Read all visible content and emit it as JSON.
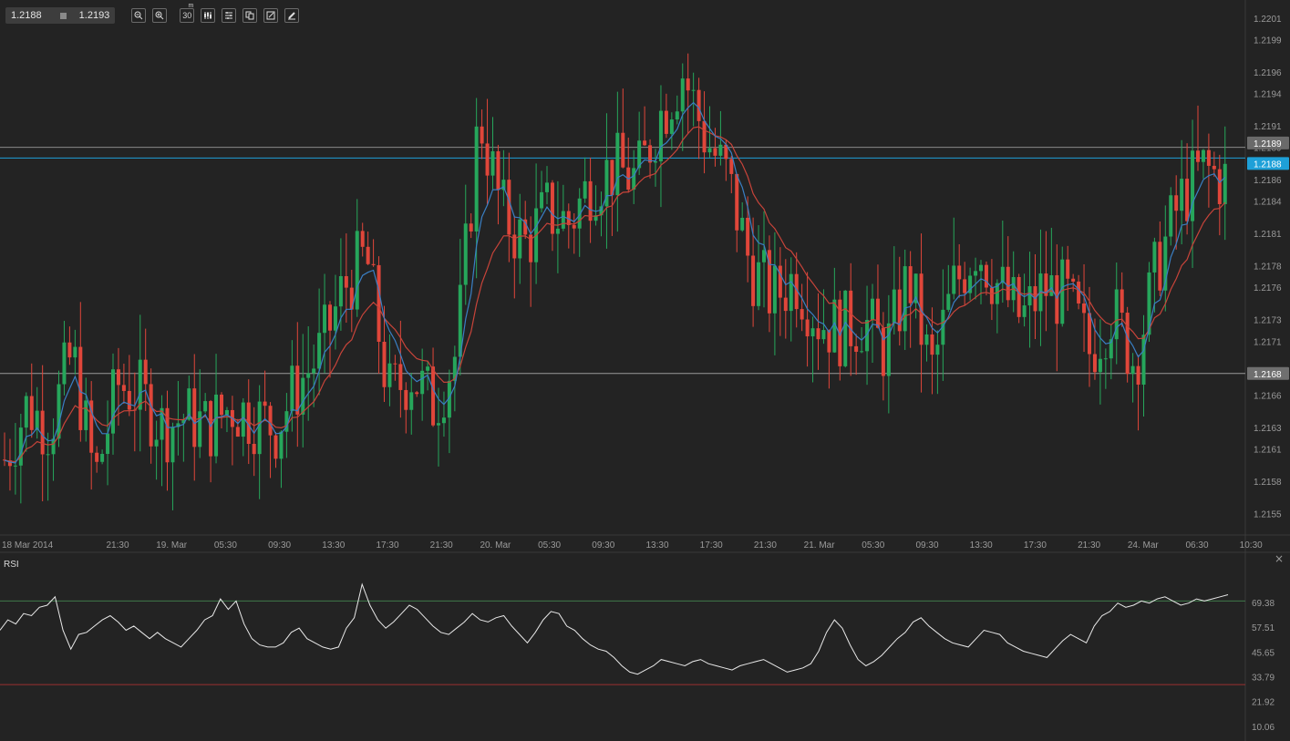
{
  "toolbar": {
    "bid": "1.2188",
    "ask": "1.2193",
    "timeframe": "30",
    "timeframe_unit": "m",
    "buttons": [
      "zoom-out-icon",
      "zoom-in-icon",
      "timeframe-icon",
      "chart-type-icon",
      "indicators-icon",
      "copy-icon",
      "draw-icon",
      "pencil-icon"
    ]
  },
  "colors": {
    "background": "#232323",
    "bull": "#26a65b",
    "bear": "#e0463a",
    "ma_fast": "#3a7fc4",
    "ma_slow": "#c8443a",
    "current_price": "#1ea0d8",
    "rsi_line": "#e8e8e8",
    "rsi_upper": "#3f7a4a",
    "rsi_lower": "#9a3030"
  },
  "chart_data": [
    {
      "type": "candlestick",
      "y_ticks": [
        "1.2201",
        "1.2199",
        "1.2196",
        "1.2194",
        "1.2191",
        "1.2189",
        "1.2186",
        "1.2184",
        "1.2181",
        "1.2178",
        "1.2176",
        "1.2173",
        "1.2171",
        "1.2168",
        "1.2166",
        "1.2163",
        "1.2161",
        "1.2158",
        "1.2155"
      ],
      "ylim": [
        1.2153,
        1.2202
      ],
      "x_ticks": [
        "18 Mar 2014",
        "21:30",
        "19. Mar",
        "05:30",
        "09:30",
        "13:30",
        "17:30",
        "21:30",
        "20. Mar",
        "05:30",
        "09:30",
        "13:30",
        "17:30",
        "21:30",
        "21. Mar",
        "05:30",
        "09:30",
        "13:30",
        "17:30",
        "21:30",
        "24. Mar",
        "06:30",
        "10:30"
      ],
      "price_labels": {
        "ask": "1.2189",
        "current": "1.2188",
        "level": "1.2168"
      },
      "horizontal_lines": [
        1.2189,
        1.2188,
        1.2168
      ],
      "close_trend": [
        1.216,
        1.2165,
        1.2163,
        1.217,
        1.2158,
        1.2167,
        1.2166,
        1.2163,
        1.2164,
        1.2163,
        1.2165,
        1.2164,
        1.2163,
        1.2167,
        1.217,
        1.2176,
        1.2179,
        1.2166,
        1.2168,
        1.2165,
        1.217,
        1.2192,
        1.2183,
        1.218,
        1.2183,
        1.2182,
        1.2186,
        1.2187,
        1.2186,
        1.2192,
        1.2196,
        1.219,
        1.2186,
        1.2178,
        1.2175,
        1.2177,
        1.2173,
        1.2172,
        1.2173,
        1.217,
        1.2177,
        1.2168,
        1.2176,
        1.218,
        1.2176,
        1.2173,
        1.2176,
        1.2175,
        1.217,
        1.2174,
        1.2169,
        1.2178,
        1.2184,
        1.2187,
        1.2186
      ],
      "moving_averages": [
        "fast",
        "slow"
      ]
    },
    {
      "type": "line",
      "title": "RSI",
      "y_ticks": [
        "69.38",
        "57.51",
        "45.65",
        "33.79",
        "21.92",
        "10.06"
      ],
      "ylim": [
        0,
        85
      ],
      "levels": [
        70,
        30
      ],
      "values": [
        56,
        61,
        59,
        64,
        63,
        67,
        68,
        72,
        56,
        47,
        54,
        55,
        58,
        61,
        63,
        60,
        56,
        58,
        55,
        52,
        55,
        52,
        50,
        48,
        52,
        56,
        61,
        63,
        71,
        66,
        70,
        59,
        52,
        49,
        48,
        48,
        50,
        55,
        57,
        52,
        50,
        48,
        47,
        48,
        57,
        62,
        78,
        68,
        61,
        57,
        60,
        64,
        68,
        66,
        62,
        58,
        55,
        54,
        57,
        60,
        64,
        61,
        60,
        62,
        63,
        58,
        54,
        50,
        55,
        61,
        65,
        64,
        58,
        56,
        52,
        49,
        47,
        46,
        43,
        39,
        36,
        35,
        37,
        39,
        42,
        41,
        40,
        39,
        41,
        42,
        40,
        39,
        38,
        37,
        39,
        40,
        41,
        42,
        40,
        38,
        36,
        37,
        38,
        40,
        46,
        55,
        61,
        57,
        49,
        42,
        39,
        41,
        44,
        48,
        52,
        55,
        60,
        62,
        58,
        55,
        52,
        50,
        49,
        48,
        52,
        56,
        55,
        54,
        50,
        48,
        46,
        45,
        44,
        43,
        47,
        51,
        54,
        52,
        50,
        58,
        63,
        65,
        69,
        67,
        68,
        70,
        69,
        71,
        72,
        70,
        68,
        69,
        71,
        70,
        71,
        72,
        73
      ]
    }
  ]
}
